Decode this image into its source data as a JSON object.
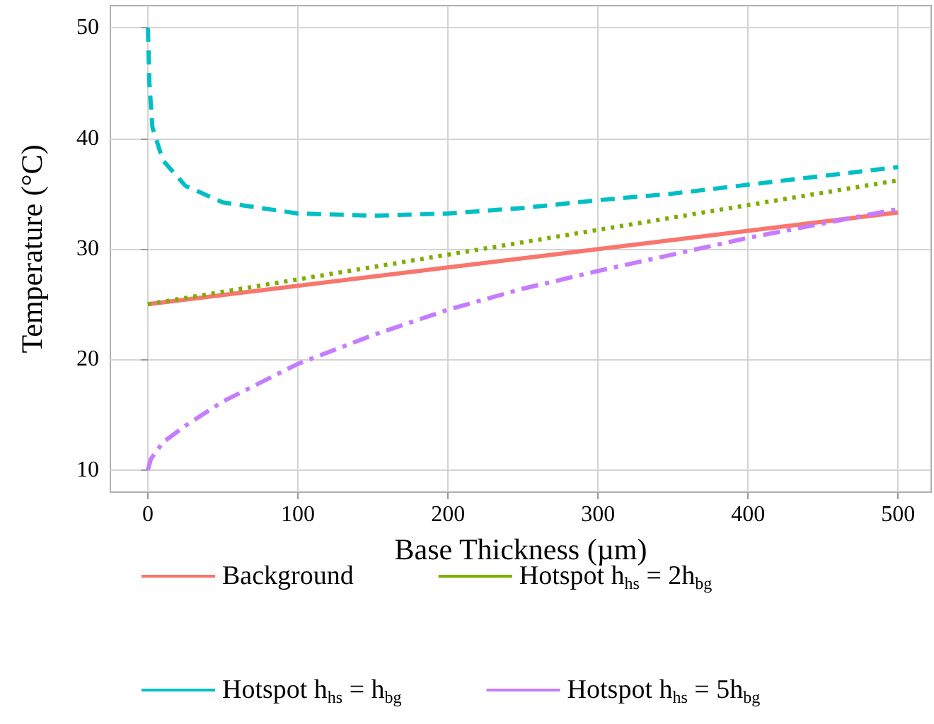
{
  "chart_data": {
    "type": "line",
    "xlabel": "Base Thickness (µm)",
    "ylabel": "Temperature (°C)",
    "xlim": [
      -25,
      522
    ],
    "ylim": [
      8,
      52
    ],
    "xticks": [
      0,
      100,
      200,
      300,
      400,
      500
    ],
    "yticks": [
      10,
      20,
      30,
      40,
      50
    ],
    "grid": true,
    "legend": "bottom",
    "marker": "none",
    "series": [
      {
        "name": "Background",
        "color": "#f8766d",
        "line_style": "solid",
        "x": [
          0,
          500
        ],
        "values": [
          25,
          33.3
        ]
      },
      {
        "name": "Hotspot h$_{hs}$ = 2h$_{bg}$",
        "color": "#7cae00",
        "line_style": "dotted",
        "x": [
          0,
          250,
          500
        ],
        "values": [
          25,
          30.6,
          36.2
        ]
      },
      {
        "name": "Hotspot h$_{hs}$ = h$_{bg}$",
        "color": "#00bfc4",
        "line_style": "dashed",
        "x": [
          0,
          1,
          3,
          10,
          25,
          50,
          100,
          150,
          200,
          250,
          300,
          350,
          400,
          450,
          500
        ],
        "values": [
          50,
          45,
          41,
          38,
          35.7,
          34.2,
          33.2,
          33,
          33.2,
          33.7,
          34.4,
          35,
          35.8,
          36.6,
          37.4
        ]
      },
      {
        "name": "Hotspot h$_{hs}$ = 5h$_{bg}$",
        "color": "#c77cff",
        "line_style": "dashdot",
        "x": [
          0,
          2,
          10,
          25,
          50,
          100,
          150,
          200,
          250,
          300,
          350,
          400,
          450,
          500
        ],
        "values": [
          10,
          11,
          12.5,
          14,
          16.2,
          19.6,
          22.2,
          24.5,
          26.4,
          28,
          29.5,
          31,
          32.3,
          33.6
        ]
      }
    ]
  }
}
